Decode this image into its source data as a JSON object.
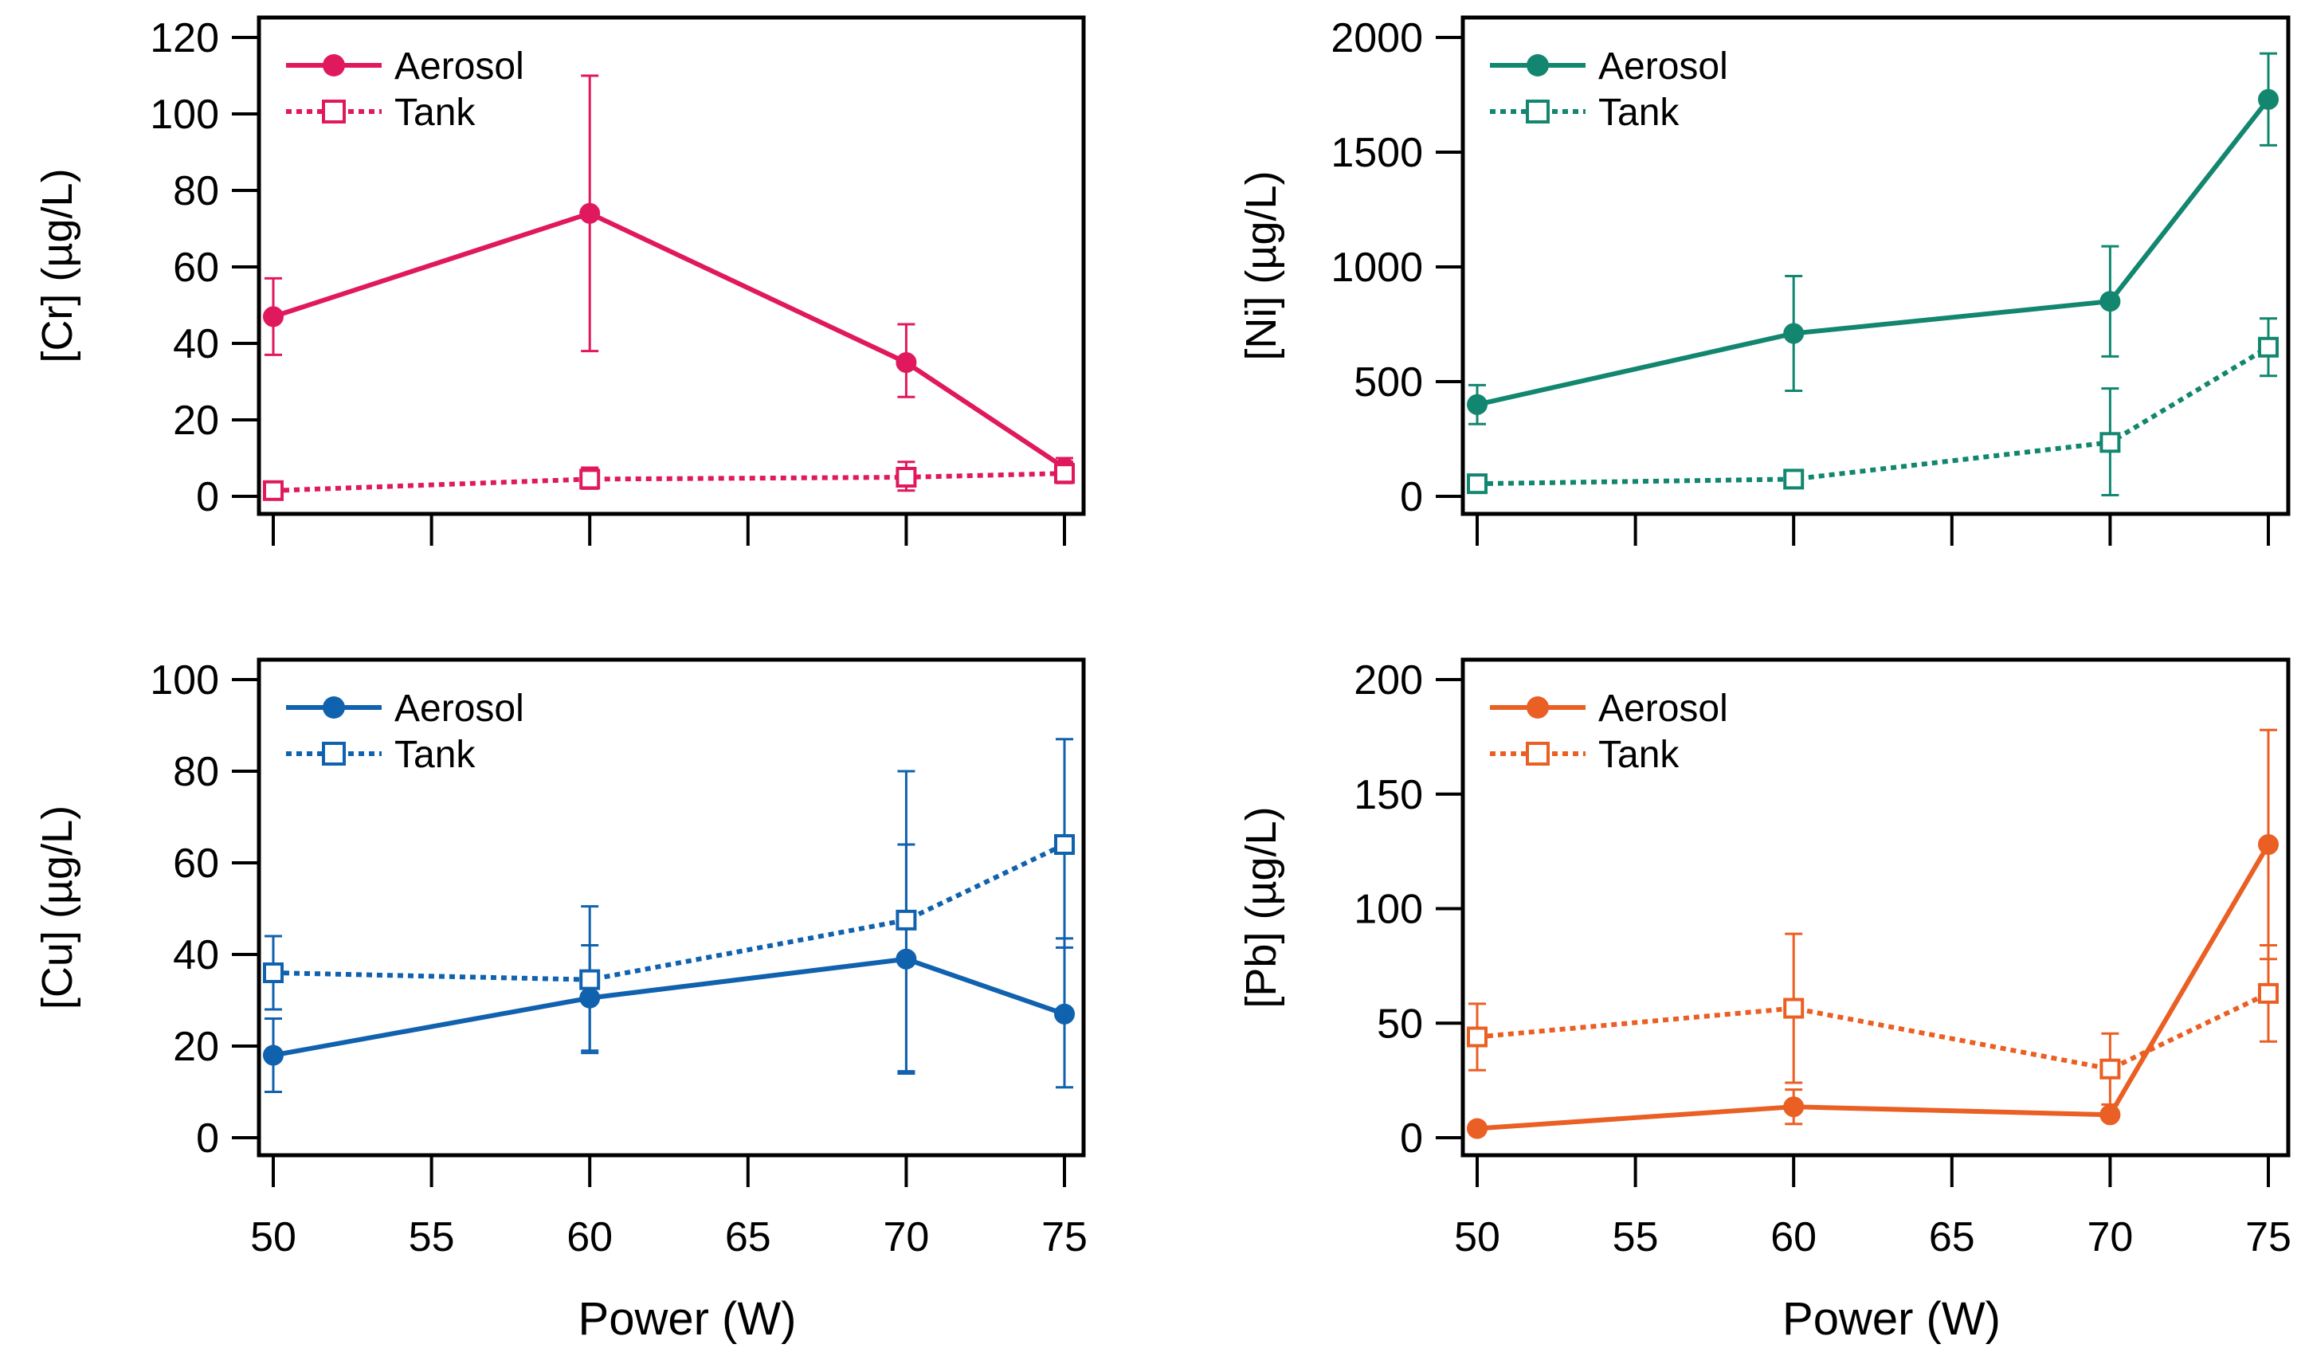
{
  "chart_data": [
    {
      "type": "line",
      "id": "cr",
      "ylabel": "[Cr] (µg/L)",
      "xlabel": "",
      "color": "#E0195E",
      "x_ticks": [
        50,
        55,
        60,
        65,
        70,
        75
      ],
      "x_tick_labels_shown": false,
      "xlim": [
        50,
        75
      ],
      "ylim": [
        0,
        120
      ],
      "y_ticks": [
        0,
        20,
        40,
        60,
        80,
        100,
        120
      ],
      "legend_position": "top-left",
      "series": [
        {
          "name": "Aerosol",
          "style": "solid",
          "marker": "filled-circle",
          "x": [
            50,
            60,
            70,
            75
          ],
          "values": [
            47,
            74,
            35,
            7.5
          ],
          "err_low": [
            37,
            38,
            26,
            4
          ],
          "err_high": [
            57,
            110,
            45,
            10
          ]
        },
        {
          "name": "Tank",
          "style": "dotted",
          "marker": "open-square",
          "x": [
            50,
            60,
            70,
            75
          ],
          "values": [
            1.5,
            4.5,
            5,
            6
          ],
          "err_low": [
            0.5,
            2,
            1.5,
            3.5
          ],
          "err_high": [
            2.5,
            7.5,
            9,
            9
          ]
        }
      ]
    },
    {
      "type": "line",
      "id": "ni",
      "ylabel": "[Ni] (µg/L)",
      "xlabel": "",
      "color": "#12866F",
      "x_ticks": [
        50,
        55,
        60,
        65,
        70,
        75
      ],
      "x_tick_labels_shown": false,
      "xlim": [
        50,
        75
      ],
      "ylim": [
        0,
        2000
      ],
      "y_ticks": [
        0,
        500,
        1000,
        1500,
        2000
      ],
      "legend_position": "top-left",
      "series": [
        {
          "name": "Aerosol",
          "style": "solid",
          "marker": "filled-circle",
          "x": [
            50,
            60,
            70,
            75
          ],
          "values": [
            400,
            710,
            850,
            1730
          ],
          "err_low": [
            315,
            460,
            610,
            1530
          ],
          "err_high": [
            485,
            960,
            1090,
            1930
          ]
        },
        {
          "name": "Tank",
          "style": "dotted",
          "marker": "open-square",
          "x": [
            50,
            60,
            70,
            75
          ],
          "values": [
            55,
            75,
            235,
            650
          ],
          "err_low": [
            35,
            55,
            5,
            525
          ],
          "err_high": [
            75,
            95,
            470,
            775
          ]
        }
      ]
    },
    {
      "type": "line",
      "id": "cu",
      "ylabel": "[Cu] (µg/L)",
      "xlabel": "Power (W)",
      "color": "#1162AE",
      "x_ticks": [
        50,
        55,
        60,
        65,
        70,
        75
      ],
      "x_tick_labels_shown": true,
      "xlim": [
        50,
        75
      ],
      "ylim": [
        0,
        100
      ],
      "y_ticks": [
        0,
        20,
        40,
        60,
        80,
        100
      ],
      "legend_position": "top-left",
      "series": [
        {
          "name": "Aerosol",
          "style": "solid",
          "marker": "filled-circle",
          "x": [
            50,
            60,
            70,
            75
          ],
          "values": [
            18,
            30.5,
            39,
            27
          ],
          "err_low": [
            10,
            19,
            14.5,
            11
          ],
          "err_high": [
            26,
            42,
            64,
            43.5
          ]
        },
        {
          "name": "Tank",
          "style": "dotted",
          "marker": "open-square",
          "x": [
            50,
            60,
            70,
            75
          ],
          "values": [
            36,
            34.5,
            47.5,
            64
          ],
          "err_low": [
            28,
            18.5,
            14,
            41.5
          ],
          "err_high": [
            44,
            50.5,
            80,
            87
          ]
        }
      ]
    },
    {
      "type": "line",
      "id": "pb",
      "ylabel": "[Pb] (µg/L)",
      "xlabel": "Power (W)",
      "color": "#EA5F23",
      "x_ticks": [
        50,
        55,
        60,
        65,
        70,
        75
      ],
      "x_tick_labels_shown": true,
      "xlim": [
        50,
        75
      ],
      "ylim": [
        0,
        200
      ],
      "y_ticks": [
        0,
        50,
        100,
        150,
        200
      ],
      "legend_position": "top-left",
      "series": [
        {
          "name": "Aerosol",
          "style": "solid",
          "marker": "filled-circle",
          "x": [
            50,
            60,
            70,
            75
          ],
          "values": [
            4,
            13.5,
            10,
            128
          ],
          "err_low": [
            2,
            6,
            8,
            78
          ],
          "err_high": [
            6,
            21,
            12,
            178
          ]
        },
        {
          "name": "Tank",
          "style": "dotted",
          "marker": "open-square",
          "x": [
            50,
            60,
            70,
            75
          ],
          "values": [
            44,
            56.5,
            30,
            63
          ],
          "err_low": [
            29.5,
            24,
            14.5,
            42
          ],
          "err_high": [
            58.5,
            89,
            45.5,
            84
          ]
        }
      ]
    }
  ]
}
